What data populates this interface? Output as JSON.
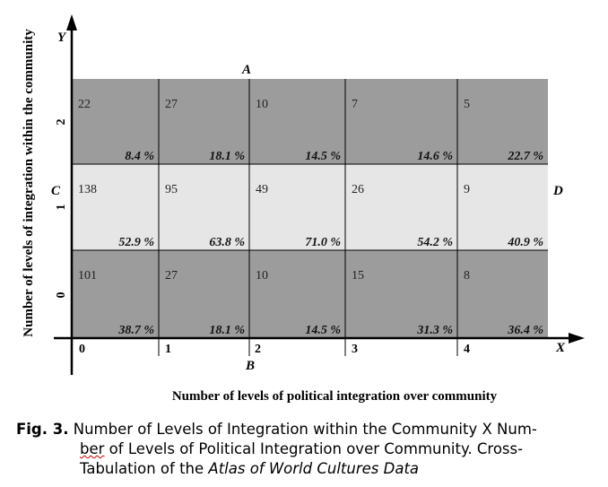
{
  "diagram": {
    "y_axis_letter": "Y",
    "x_axis_letter": "X",
    "point_a": "A",
    "point_b": "B",
    "point_c": "C",
    "point_d": "D",
    "x_ticks": [
      "0",
      "1",
      "2",
      "3",
      "4"
    ],
    "y_ticks": [
      "0",
      "1",
      "2"
    ],
    "x_axis_title": "Number of levels of political integration over community",
    "y_axis_title": "Number of levels of integration within the community",
    "rows": [
      {
        "level": "2",
        "shade": "dark",
        "counts": [
          "22",
          "27",
          "10",
          "7",
          "5"
        ],
        "percents": [
          "8.4 %",
          "18.1 %",
          "14.5 %",
          "14.6 %",
          "22.7 %"
        ]
      },
      {
        "level": "1",
        "shade": "light",
        "counts": [
          "138",
          "95",
          "49",
          "26",
          "9"
        ],
        "percents": [
          "52.9 %",
          "63.8 %",
          "71.0 %",
          "54.2 %",
          "40.9 %"
        ]
      },
      {
        "level": "0",
        "shade": "dark",
        "counts": [
          "101",
          "27",
          "10",
          "15",
          "8"
        ],
        "percents": [
          "38.7 %",
          "18.1 %",
          "14.5 %",
          "31.3 %",
          "36.4 %"
        ]
      }
    ],
    "colors": {
      "dark": "#9c9c9c",
      "light": "#e6e6e6",
      "line": "#000000"
    }
  },
  "caption": {
    "label": "Fig. 3.",
    "line1": " Number of Levels of Integration within the Community X Num-",
    "line2_wavy": "ber",
    "line2_rest": " of Levels of Political Integration over Community. Cross-",
    "line3_plain": "Tabulation of the ",
    "line3_italic": "Atlas of World Cultures Data"
  }
}
